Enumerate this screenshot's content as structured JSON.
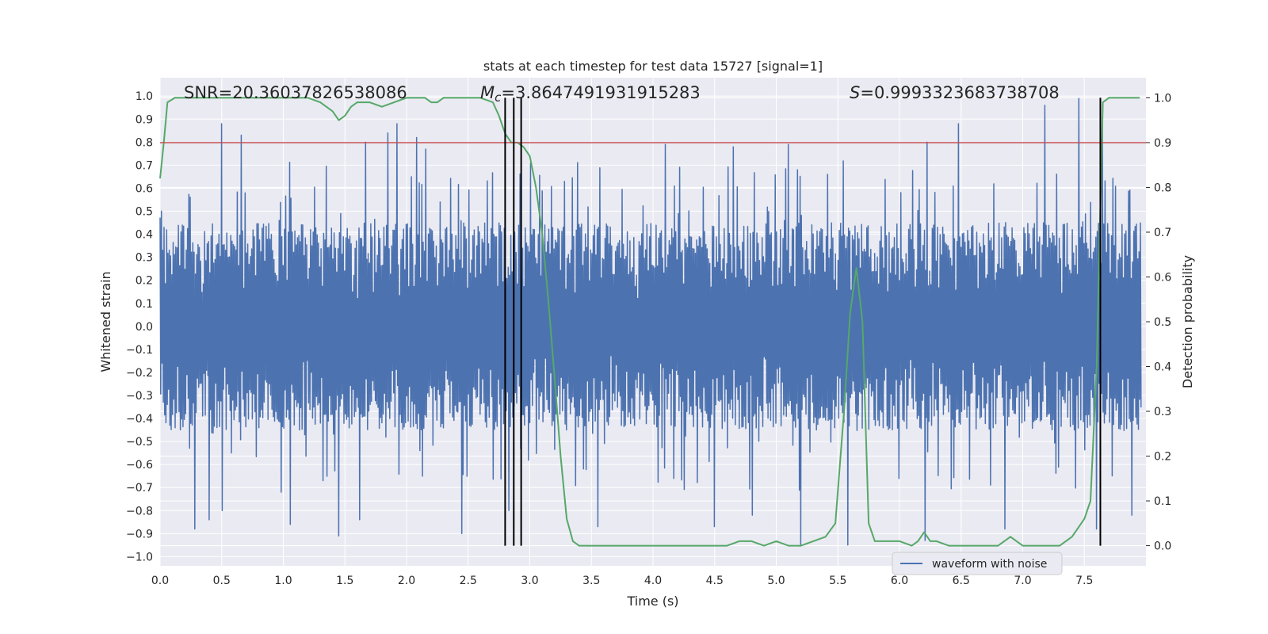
{
  "chart_data": {
    "type": "line",
    "title": "stats at each timestep for test data 15727 [signal=1]",
    "xlabel": "Time (s)",
    "ylabel_left": "Whitened strain",
    "ylabel_right": "Detection probability",
    "xlim": [
      0.0,
      8.0
    ],
    "ylim_left": [
      -1.04,
      1.08
    ],
    "ylim_right": [
      -0.045,
      1.045
    ],
    "x_ticks": [
      "0.0",
      "0.5",
      "1.0",
      "1.5",
      "2.0",
      "2.5",
      "3.0",
      "3.5",
      "4.0",
      "4.5",
      "5.0",
      "5.5",
      "6.0",
      "6.5",
      "7.0",
      "7.5"
    ],
    "y_ticks_left": [
      "1.0",
      "0.9",
      "0.8",
      "0.7",
      "0.6",
      "0.5",
      "0.4",
      "0.3",
      "0.2",
      "0.1",
      "0.0",
      "−0.1",
      "−0.2",
      "−0.3",
      "−0.4",
      "−0.5",
      "−0.6",
      "−0.7",
      "−0.8",
      "−0.9",
      "−1.0"
    ],
    "y_ticks_right": [
      "1.0",
      "0.9",
      "0.8",
      "0.7",
      "0.6",
      "0.5",
      "0.4",
      "0.3",
      "0.2",
      "0.1",
      "0.0"
    ],
    "annotations": {
      "snr": "SNR=20.36037826538086",
      "mc_symbol": "M",
      "mc_sub": "c",
      "mc_value": "=3.8647491931915283",
      "s_symbol": "S",
      "s_value": "=0.9993323683738708"
    },
    "legend": {
      "label": "waveform with noise",
      "position": "lower-right"
    },
    "threshold": {
      "value": 0.9,
      "color": "#c44e52"
    },
    "vertical_lines": [
      2.8,
      2.87,
      2.93,
      7.63
    ],
    "waveform": {
      "name": "waveform with noise",
      "color": "#4c72b0",
      "typical_extent": 0.45,
      "peak_extent": 0.72,
      "tall_spikes_up": [
        [
          0.5,
          0.88
        ],
        [
          0.66,
          0.83
        ],
        [
          1.66,
          0.8
        ],
        [
          1.85,
          0.84
        ],
        [
          1.92,
          0.88
        ],
        [
          2.08,
          0.82
        ],
        [
          2.15,
          0.77
        ],
        [
          4.1,
          0.79
        ],
        [
          4.65,
          0.78
        ],
        [
          5.1,
          0.79
        ],
        [
          6.22,
          0.8
        ],
        [
          6.48,
          0.88
        ],
        [
          7.18,
          0.96
        ],
        [
          7.45,
          0.99
        ],
        [
          7.64,
          0.88
        ]
      ],
      "tall_spikes_down": [
        [
          0.28,
          -0.88
        ],
        [
          0.4,
          -0.84
        ],
        [
          0.5,
          -0.8
        ],
        [
          1.05,
          -0.86
        ],
        [
          1.45,
          -0.91
        ],
        [
          1.62,
          -0.84
        ],
        [
          2.45,
          -0.9
        ],
        [
          2.83,
          -0.8
        ],
        [
          3.55,
          -0.87
        ],
        [
          4.5,
          -0.87
        ],
        [
          4.8,
          -0.82
        ],
        [
          5.2,
          -0.95
        ],
        [
          5.58,
          -0.95
        ],
        [
          6.2,
          -0.93
        ],
        [
          6.85,
          -0.88
        ],
        [
          7.6,
          -0.88
        ],
        [
          7.88,
          -0.82
        ]
      ]
    },
    "probability": {
      "name": "detection probability",
      "color": "#55a868",
      "x": [
        0.0,
        0.03,
        0.06,
        0.12,
        0.25,
        0.5,
        0.8,
        1.0,
        1.2,
        1.3,
        1.4,
        1.45,
        1.5,
        1.55,
        1.6,
        1.7,
        1.8,
        1.9,
        2.0,
        2.05,
        2.1,
        2.15,
        2.2,
        2.25,
        2.3,
        2.4,
        2.5,
        2.6,
        2.7,
        2.75,
        2.8,
        2.85,
        2.9,
        2.95,
        3.0,
        3.05,
        3.1,
        3.15,
        3.2,
        3.25,
        3.3,
        3.35,
        3.4,
        3.5,
        3.6,
        3.7,
        3.8,
        4.0,
        4.2,
        4.4,
        4.5,
        4.6,
        4.7,
        4.8,
        4.9,
        5.0,
        5.1,
        5.2,
        5.3,
        5.4,
        5.48,
        5.55,
        5.6,
        5.65,
        5.7,
        5.75,
        5.8,
        5.9,
        6.0,
        6.1,
        6.15,
        6.2,
        6.25,
        6.3,
        6.4,
        6.5,
        6.6,
        6.7,
        6.8,
        6.85,
        6.9,
        6.95,
        7.0,
        7.1,
        7.2,
        7.3,
        7.4,
        7.5,
        7.55,
        7.6,
        7.65,
        7.7,
        7.75,
        7.8,
        7.9,
        7.95
      ],
      "values": [
        0.82,
        0.9,
        0.99,
        1.0,
        1.0,
        1.0,
        1.0,
        1.0,
        1.0,
        0.99,
        0.97,
        0.95,
        0.96,
        0.98,
        0.99,
        0.99,
        0.98,
        0.99,
        1.0,
        1.0,
        1.0,
        1.0,
        0.99,
        0.99,
        1.0,
        1.0,
        1.0,
        1.0,
        0.99,
        0.96,
        0.92,
        0.9,
        0.9,
        0.89,
        0.87,
        0.8,
        0.7,
        0.55,
        0.38,
        0.2,
        0.06,
        0.01,
        0.0,
        0.0,
        0.0,
        0.0,
        0.0,
        0.0,
        0.0,
        0.0,
        0.0,
        0.0,
        0.01,
        0.01,
        0.0,
        0.01,
        0.0,
        0.0,
        0.01,
        0.02,
        0.05,
        0.3,
        0.52,
        0.62,
        0.5,
        0.05,
        0.01,
        0.01,
        0.01,
        0.0,
        0.01,
        0.03,
        0.01,
        0.01,
        0.0,
        0.0,
        0.0,
        0.0,
        0.0,
        0.01,
        0.02,
        0.01,
        0.0,
        0.0,
        0.0,
        0.0,
        0.02,
        0.06,
        0.1,
        0.4,
        0.99,
        1.0,
        1.0,
        1.0,
        1.0,
        1.0
      ]
    }
  }
}
